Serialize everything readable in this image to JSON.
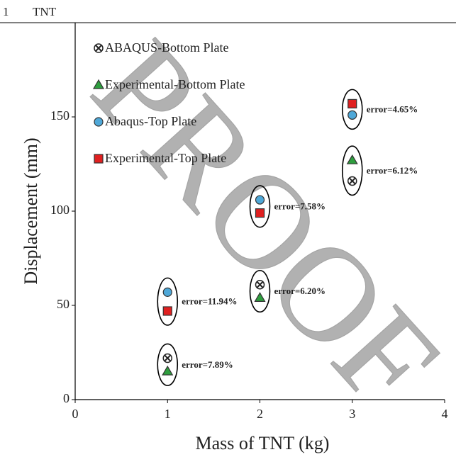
{
  "header": {
    "number": "1",
    "text": "TNT"
  },
  "watermark": "PROOF",
  "chart_data": {
    "type": "scatter",
    "xlabel": "Mass of TNT (kg)",
    "ylabel": "Displacement (mm)",
    "xlim": [
      0,
      4
    ],
    "xticks": [
      0,
      1,
      2,
      3,
      4
    ],
    "ylim": [
      0,
      200
    ],
    "yticks": [
      0,
      50,
      100,
      150
    ],
    "x": [
      1,
      2,
      3
    ],
    "series": [
      {
        "name": "ABAQUS-Bottom Plate",
        "marker": "crossed-circle",
        "color": "#ffffff",
        "values": [
          22,
          61,
          116
        ]
      },
      {
        "name": "Experimental-Bottom Plate",
        "marker": "triangle",
        "color": "#2e9e3e",
        "values": [
          15,
          54,
          127
        ]
      },
      {
        "name": "Abaqus-Top Plate",
        "marker": "circle",
        "color": "#4fa8d8",
        "values": [
          57,
          106,
          151
        ]
      },
      {
        "name": "Experimental-Top Plate",
        "marker": "square",
        "color": "#e02020",
        "values": [
          47,
          99,
          157
        ]
      }
    ],
    "annotations": [
      "error=7.89%",
      "error=6.20%",
      "error=6.12%",
      "error=11.94%",
      "error=7.58%",
      "error=4.65%"
    ],
    "legend": "upper left"
  }
}
